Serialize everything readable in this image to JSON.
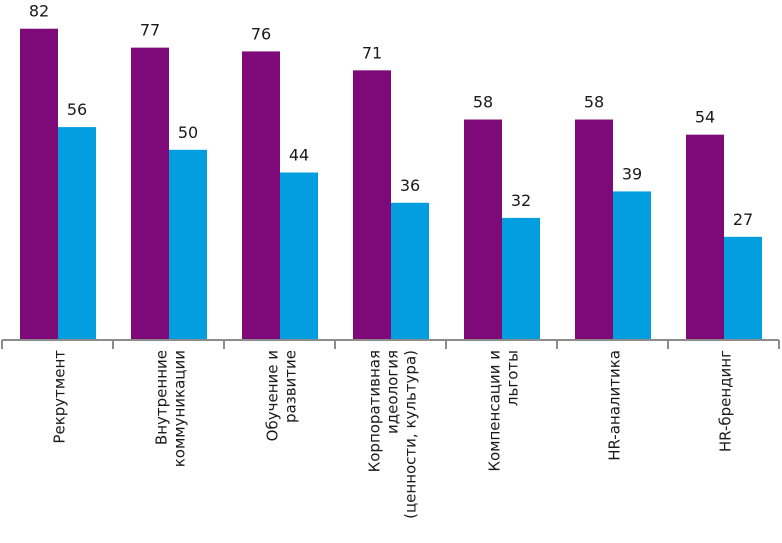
{
  "chart_data": {
    "type": "bar",
    "categories": [
      [
        "Рекрутмент"
      ],
      [
        "Внутренние",
        "коммуникации"
      ],
      [
        "Обучение и",
        "развитие"
      ],
      [
        "Корпоративная",
        "идеология",
        "(ценности, культура)"
      ],
      [
        "Компенсации и",
        "льготы"
      ],
      [
        "HR-аналитика"
      ],
      [
        "HR-брендинг"
      ]
    ],
    "series": [
      {
        "values": [
          82,
          77,
          76,
          71,
          58,
          58,
          54
        ],
        "color": "#7d0a78"
      },
      {
        "values": [
          56,
          50,
          44,
          36,
          32,
          39,
          27
        ],
        "color": "#039ee0"
      }
    ],
    "ylim": [
      0,
      90
    ],
    "xlabel": "",
    "ylabel": "",
    "grid": false,
    "legend": "none",
    "category_label_orientation": "vertical"
  }
}
